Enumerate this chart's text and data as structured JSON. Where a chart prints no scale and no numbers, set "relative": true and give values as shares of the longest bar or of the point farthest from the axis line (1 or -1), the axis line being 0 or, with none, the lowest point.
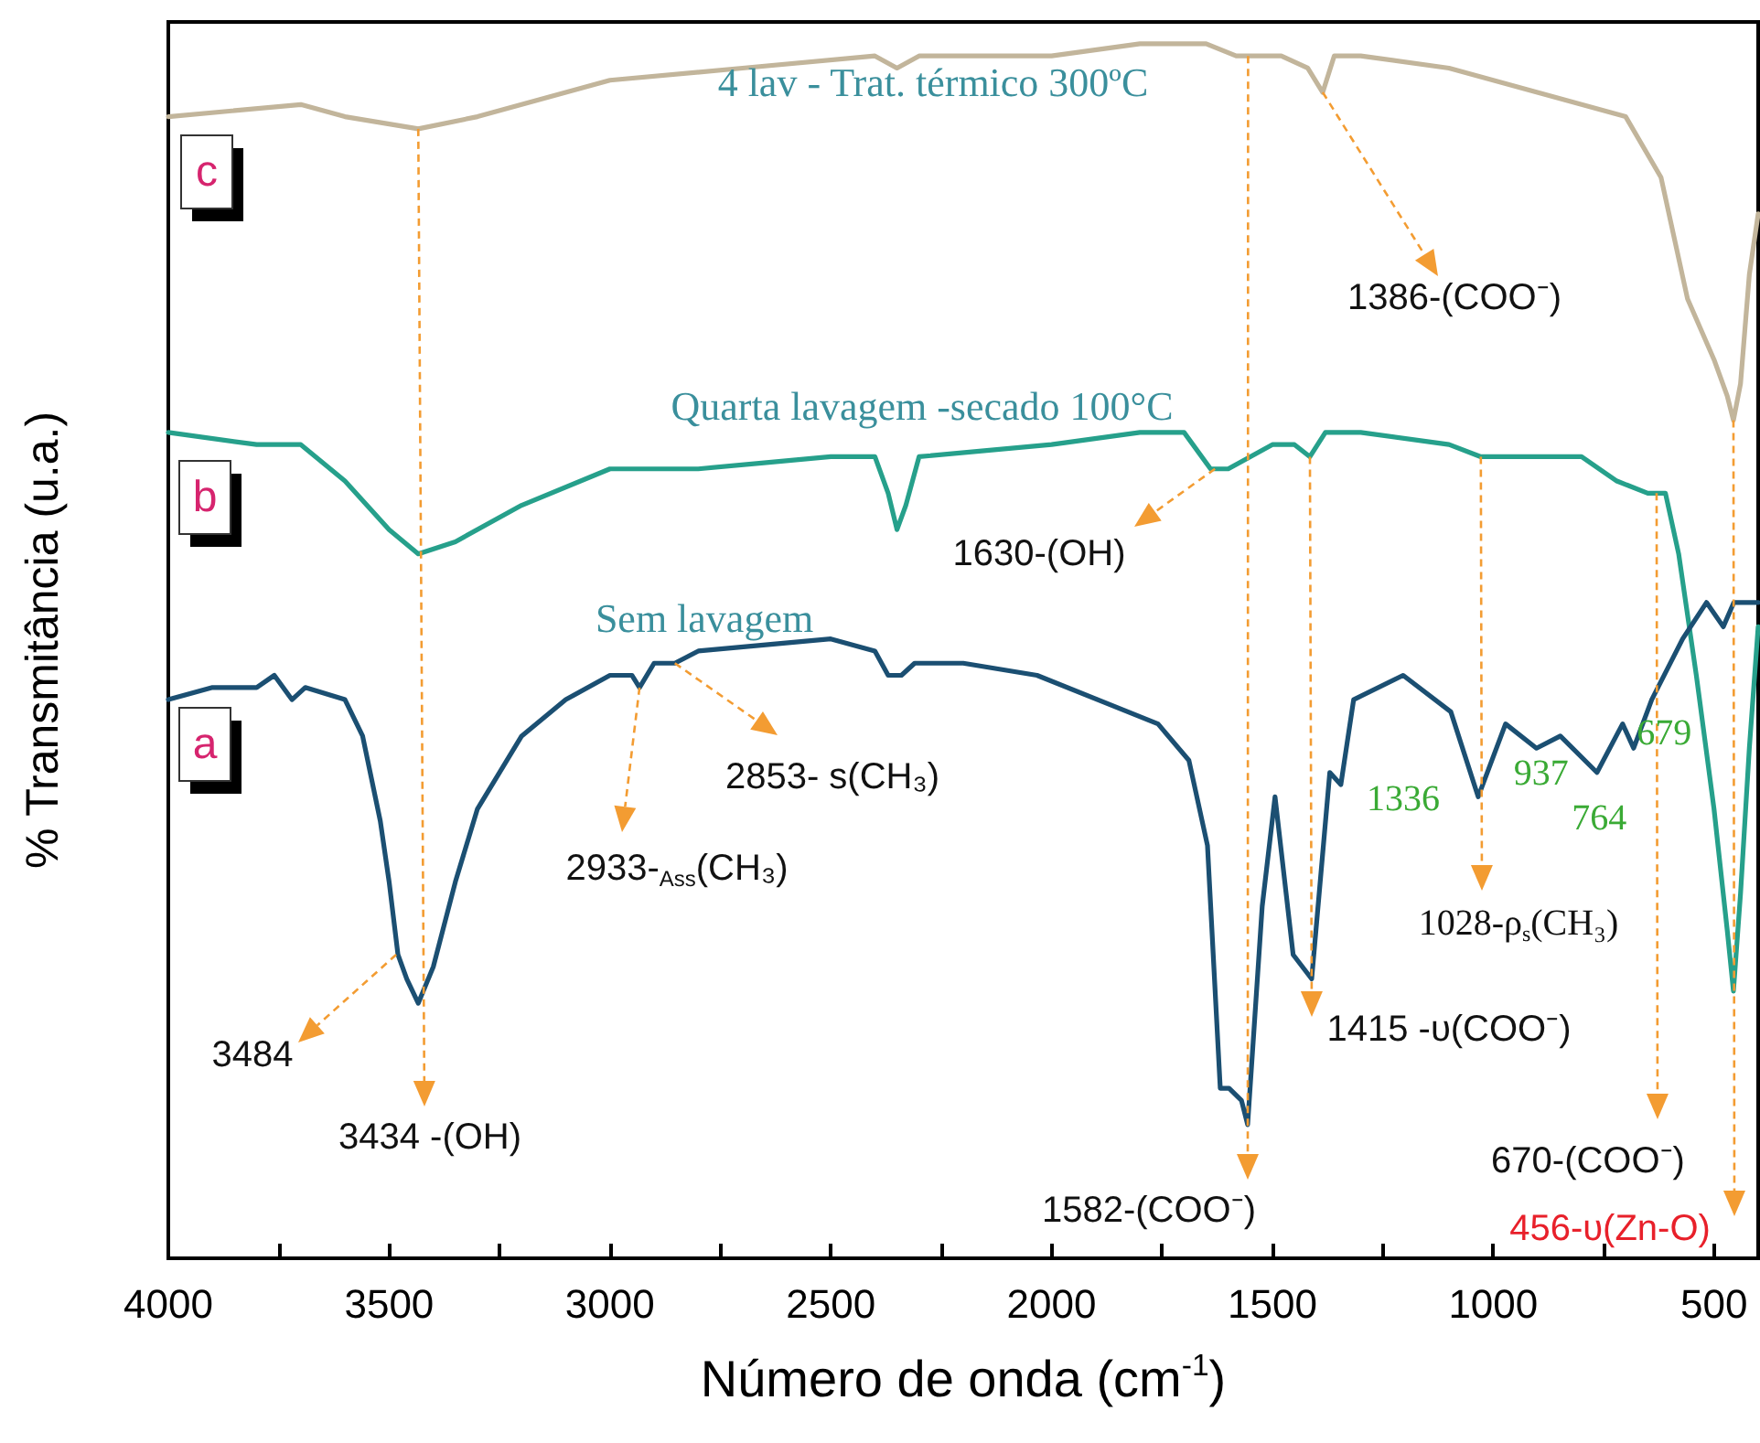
{
  "chart_data": {
    "type": "line",
    "relative": true,
    "xlabel": "Número de onda (cm$^{-1}$)",
    "ylabel": "% Transmitância (u.a.)",
    "xlim": [
      4000,
      400
    ],
    "xticks": [
      4000,
      3500,
      3000,
      2500,
      2000,
      1500,
      1000,
      500
    ],
    "legend": false,
    "marker": "none",
    "series": [
      {
        "name": "4 lav - Trat. térmico 300ºC",
        "color": "#c2b59b",
        "x": [
          4000,
          3700,
          3600,
          3434,
          3300,
          3000,
          2700,
          2400,
          2350,
          2300,
          2000,
          1800,
          1650,
          1582,
          1550,
          1480,
          1420,
          1386,
          1360,
          1300,
          1100,
          900,
          800,
          700,
          620,
          560,
          500,
          470,
          456,
          440,
          420,
          400
        ],
        "values": [
          0.94,
          0.95,
          0.94,
          0.93,
          0.94,
          0.97,
          0.98,
          0.99,
          0.98,
          0.99,
          0.99,
          1.0,
          1.0,
          0.99,
          0.99,
          0.99,
          0.98,
          0.96,
          0.99,
          0.99,
          0.98,
          0.96,
          0.95,
          0.94,
          0.89,
          0.79,
          0.74,
          0.71,
          0.69,
          0.72,
          0.81,
          0.86
        ]
      },
      {
        "name": "Quarta lavagem -secado 100°C",
        "color": "#26a08b",
        "x": [
          4000,
          3800,
          3700,
          3600,
          3500,
          3434,
          3350,
          3200,
          3000,
          2800,
          2500,
          2400,
          2370,
          2350,
          2330,
          2300,
          2000,
          1800,
          1700,
          1640,
          1600,
          1550,
          1500,
          1450,
          1415,
          1380,
          1300,
          1100,
          1028,
          900,
          800,
          720,
          650,
          610,
          580,
          540,
          500,
          470,
          456,
          440,
          420,
          400
        ],
        "values": [
          0.68,
          0.67,
          0.67,
          0.64,
          0.6,
          0.58,
          0.59,
          0.62,
          0.65,
          0.65,
          0.66,
          0.66,
          0.63,
          0.6,
          0.62,
          0.66,
          0.67,
          0.68,
          0.68,
          0.65,
          0.65,
          0.66,
          0.67,
          0.67,
          0.66,
          0.68,
          0.68,
          0.67,
          0.66,
          0.66,
          0.66,
          0.64,
          0.63,
          0.63,
          0.58,
          0.48,
          0.37,
          0.27,
          0.22,
          0.3,
          0.42,
          0.52
        ]
      },
      {
        "name": "Sem lavagem",
        "color": "#1b4f72",
        "x": [
          4000,
          3900,
          3800,
          3760,
          3720,
          3690,
          3600,
          3560,
          3520,
          3500,
          3480,
          3460,
          3434,
          3400,
          3350,
          3300,
          3200,
          3100,
          3000,
          2950,
          2933,
          2900,
          2853,
          2800,
          2500,
          2400,
          2370,
          2340,
          2310,
          2200,
          2033,
          1759,
          1689,
          1647,
          1618,
          1598,
          1570,
          1556,
          1523,
          1494,
          1453,
          1411,
          1370,
          1345,
          1316,
          1204,
          1096,
          1034,
          972,
          902,
          848,
          765,
          707,
          682,
          641,
          571,
          517,
          479,
          455,
          400
        ],
        "values": [
          0.46,
          0.47,
          0.47,
          0.48,
          0.46,
          0.47,
          0.46,
          0.43,
          0.36,
          0.31,
          0.25,
          0.23,
          0.21,
          0.24,
          0.31,
          0.37,
          0.43,
          0.46,
          0.48,
          0.48,
          0.47,
          0.49,
          0.49,
          0.5,
          0.51,
          0.5,
          0.48,
          0.48,
          0.49,
          0.49,
          0.48,
          0.44,
          0.41,
          0.34,
          0.14,
          0.14,
          0.13,
          0.11,
          0.29,
          0.38,
          0.25,
          0.23,
          0.4,
          0.39,
          0.46,
          0.48,
          0.45,
          0.38,
          0.44,
          0.42,
          0.43,
          0.4,
          0.44,
          0.42,
          0.46,
          0.51,
          0.54,
          0.52,
          0.54,
          0.54
        ]
      }
    ],
    "annotations": [
      "c",
      "b",
      "a",
      {
        "text": "3484",
        "x": 3484,
        "y": 0.25
      },
      {
        "text": "3434 -(OH)",
        "x": 3434,
        "y": 0.93
      },
      {
        "text": "2933-$_{Ass}$(CH₃)",
        "x": 2933,
        "y": 0.47
      },
      {
        "text": "2853- s(CH₃)",
        "x": 2853,
        "y": 0.49
      },
      {
        "text": "1630-(OH)",
        "x": 1630,
        "y": 0.65
      },
      {
        "text": "1386-(COO⁻)",
        "x": 1386,
        "y": 0.96
      },
      {
        "text": "1582-(COO⁻)",
        "x": 1555,
        "y": 0.99
      },
      {
        "text": "1415 -υ(COO⁻)",
        "x": 1415,
        "y": 0.66
      },
      {
        "text": "1336",
        "x": 1336,
        "y": 0.45
      },
      {
        "text": "1028-ρ$_{s}$(CH₃)",
        "x": 1028,
        "y": 0.66
      },
      {
        "text": "937",
        "x": 937,
        "y": 0.44
      },
      {
        "text": "764",
        "x": 764,
        "y": 0.4
      },
      {
        "text": "679",
        "x": 679,
        "y": 0.42
      },
      {
        "text": "670-(COO⁻)",
        "x": 630,
        "y": 0.63
      },
      {
        "text": "456-υ(Zn-O)",
        "x": 456,
        "y": 0.69
      }
    ]
  }
}
